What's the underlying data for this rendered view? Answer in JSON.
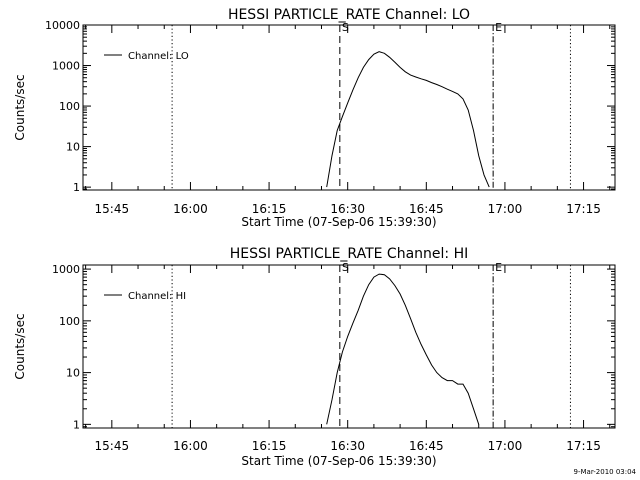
{
  "footer": {
    "timestamp": "9-Mar-2010 03:04"
  },
  "chart_data": [
    {
      "type": "line",
      "title": "HESSI PARTICLE_RATE Channel: LO",
      "xlabel": "Start Time (07-Sep-06 15:39:30)",
      "ylabel": "Counts/sec",
      "yscale": "log",
      "xlim": [
        "15:39:30",
        "17:21:00"
      ],
      "ylim": [
        0.85,
        10000
      ],
      "x_ticks": [
        "15:45",
        "16:00",
        "16:15",
        "16:30",
        "16:45",
        "17:00",
        "17:15"
      ],
      "y_ticks": [
        "1",
        "10",
        "100",
        "1000",
        "10000"
      ],
      "legend": {
        "position": "top-left",
        "entries": [
          "Channel: LO"
        ]
      },
      "markers": [
        {
          "time": "15:56:30",
          "style": "dotted",
          "label": ""
        },
        {
          "time": "16:28:30",
          "style": "dashed",
          "label": "S"
        },
        {
          "time": "16:57:45",
          "style": "dash-dot",
          "label": "E"
        },
        {
          "time": "17:12:30",
          "style": "dotted",
          "label": ""
        }
      ],
      "series": [
        {
          "name": "Channel: LO",
          "x": [
            "16:26:00",
            "16:27:00",
            "16:28:00",
            "16:29:00",
            "16:30:00",
            "16:31:00",
            "16:32:00",
            "16:33:00",
            "16:34:00",
            "16:35:00",
            "16:36:00",
            "16:37:00",
            "16:38:00",
            "16:39:00",
            "16:40:00",
            "16:41:00",
            "16:42:00",
            "16:43:00",
            "16:44:00",
            "16:45:00",
            "16:46:00",
            "16:47:00",
            "16:48:00",
            "16:49:00",
            "16:50:00",
            "16:51:00",
            "16:52:00",
            "16:53:00",
            "16:54:00",
            "16:55:00",
            "16:56:00",
            "16:57:00"
          ],
          "y": [
            1,
            6,
            25,
            55,
            120,
            250,
            500,
            900,
            1400,
            1900,
            2200,
            2000,
            1600,
            1200,
            900,
            700,
            580,
            520,
            470,
            430,
            380,
            340,
            300,
            260,
            230,
            200,
            150,
            80,
            25,
            6,
            2,
            1
          ]
        }
      ]
    },
    {
      "type": "line",
      "title": "HESSI PARTICLE_RATE Channel: HI",
      "xlabel": "Start Time (07-Sep-06 15:39:30)",
      "ylabel": "Counts/sec",
      "yscale": "log",
      "xlim": [
        "15:39:30",
        "17:21:00"
      ],
      "ylim": [
        0.85,
        1200
      ],
      "x_ticks": [
        "15:45",
        "16:00",
        "16:15",
        "16:30",
        "16:45",
        "17:00",
        "17:15"
      ],
      "y_ticks": [
        "1",
        "10",
        "100",
        "1000"
      ],
      "legend": {
        "position": "top-left",
        "entries": [
          "Channel: HI"
        ]
      },
      "markers": [
        {
          "time": "15:56:30",
          "style": "dotted",
          "label": ""
        },
        {
          "time": "16:28:30",
          "style": "dashed",
          "label": "S"
        },
        {
          "time": "16:57:45",
          "style": "dash-dot",
          "label": "E"
        },
        {
          "time": "17:12:30",
          "style": "dotted",
          "label": ""
        }
      ],
      "series": [
        {
          "name": "Channel: HI",
          "x": [
            "16:26:00",
            "16:27:00",
            "16:28:00",
            "16:29:00",
            "16:30:00",
            "16:31:00",
            "16:32:00",
            "16:33:00",
            "16:34:00",
            "16:35:00",
            "16:36:00",
            "16:37:00",
            "16:38:00",
            "16:39:00",
            "16:40:00",
            "16:41:00",
            "16:42:00",
            "16:43:00",
            "16:44:00",
            "16:45:00",
            "16:46:00",
            "16:47:00",
            "16:48:00",
            "16:49:00",
            "16:50:00",
            "16:51:00",
            "16:52:00",
            "16:53:00",
            "16:54:00",
            "16:55:00"
          ],
          "y": [
            1,
            3,
            10,
            25,
            50,
            90,
            160,
            300,
            500,
            700,
            800,
            780,
            650,
            480,
            330,
            200,
            110,
            60,
            35,
            22,
            14,
            10,
            8,
            7,
            7,
            6,
            6,
            4,
            2,
            1
          ]
        }
      ]
    }
  ]
}
